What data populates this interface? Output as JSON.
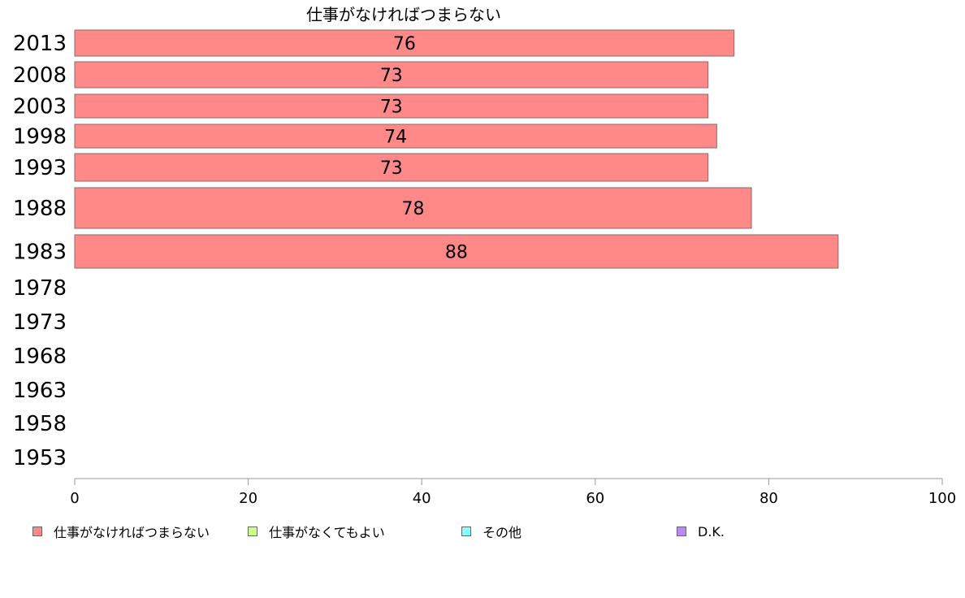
{
  "chart_data": {
    "type": "bar",
    "orientation": "horizontal",
    "title": "仕事がなければつまらない",
    "categories": [
      "2013",
      "2008",
      "2003",
      "1998",
      "1993",
      "1988",
      "1983",
      "1978",
      "1973",
      "1968",
      "1963",
      "1958",
      "1953"
    ],
    "series": [
      {
        "name": "仕事がなければつまらない",
        "color": "#ff8888",
        "values": [
          76,
          73,
          73,
          74,
          73,
          78,
          88,
          null,
          null,
          null,
          null,
          null,
          null
        ]
      }
    ],
    "value_labels": [
      "76",
      "73",
      "73",
      "74",
      "73",
      "78",
      "88",
      "",
      "",
      "",
      "",
      "",
      ""
    ],
    "xlim": [
      0,
      100
    ],
    "xticks": [
      "0",
      "20",
      "40",
      "60",
      "80",
      "100"
    ],
    "xlabel": "",
    "ylabel": "",
    "grid": false,
    "legend_position": "bottom",
    "legend": [
      {
        "label": "仕事がなければつまらない",
        "color": "#ff8888"
      },
      {
        "label": "仕事がなくてもよい",
        "color": "#ccff88"
      },
      {
        "label": "その他",
        "color": "#88ffff"
      },
      {
        "label": "D.K.",
        "color": "#bb88ff"
      }
    ]
  }
}
